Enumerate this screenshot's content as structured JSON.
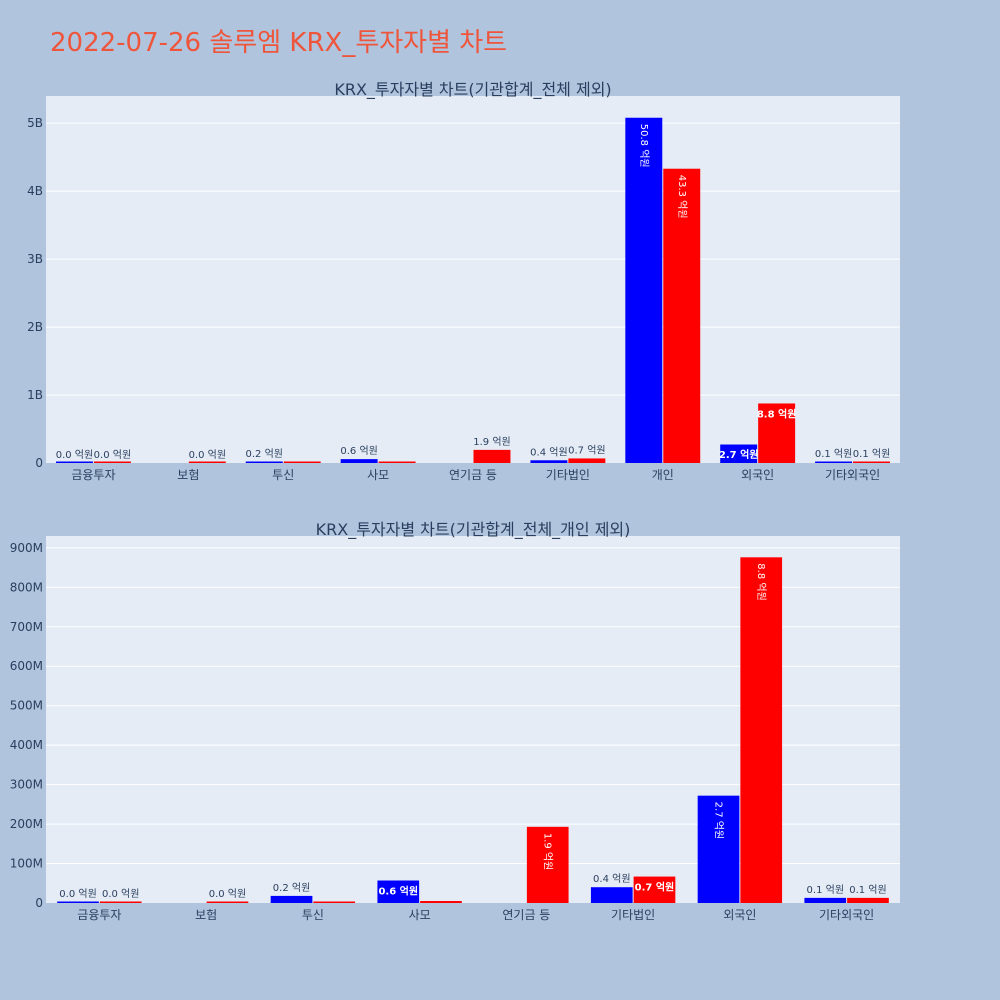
{
  "page": {
    "title": "2022-07-26 솔루엠 KRX_투자자별 차트"
  },
  "colors": {
    "buy": "#0000FF",
    "sell": "#FF0000",
    "plot_bg": "#E5ECF6",
    "page_bg": "#B0C4DE",
    "title": "#EF553B"
  },
  "chart_data": [
    {
      "type": "bar",
      "title": "KRX_투자자별 차트(기관합계_전체 제외)",
      "categories": [
        "금융투자",
        "보험",
        "투신",
        "사모",
        "연기금 등",
        "기타법인",
        "개인",
        "외국인",
        "기타외국인"
      ],
      "series": [
        {
          "color": "#0000FF",
          "values": [
            3000000,
            null,
            18000000,
            57000000,
            null,
            40000000,
            5080000000,
            272000000,
            13000000
          ],
          "labels": [
            "0.0 억원",
            "",
            "0.2 억원",
            "0.6 억원",
            "",
            "0.4 억원",
            "50.8 억원",
            "2.7 억원",
            "0.1 억원"
          ]
        },
        {
          "color": "#FF0000",
          "values": [
            3000000,
            2000000,
            3000000,
            5000000,
            193000000,
            67000000,
            4330000000,
            876000000,
            13000000
          ],
          "labels": [
            "0.0 억원",
            "0.0 억원",
            "",
            "",
            "1.9 억원",
            "0.7 억원",
            "43.3 억원",
            "8.8 억원",
            "0.1 억원"
          ]
        }
      ],
      "yticks": [
        0,
        1000000000,
        2000000000,
        3000000000,
        4000000000,
        5000000000
      ],
      "yticklabels": [
        "0",
        "1B",
        "2B",
        "3B",
        "4B",
        "5B"
      ],
      "ylim": [
        0,
        5400000000
      ]
    },
    {
      "type": "bar",
      "title": "KRX_투자자별 차트(기관합계_전체_개인 제외)",
      "categories": [
        "금융투자",
        "보험",
        "투신",
        "사모",
        "연기금 등",
        "기타법인",
        "외국인",
        "기타외국인"
      ],
      "series": [
        {
          "color": "#0000FF",
          "values": [
            3000000,
            null,
            18000000,
            57000000,
            null,
            40000000,
            272000000,
            13000000
          ],
          "labels": [
            "0.0 억원",
            "",
            "0.2 억원",
            "0.6 억원",
            "",
            "0.4 억원",
            "2.7 억원",
            "0.1 억원"
          ]
        },
        {
          "color": "#FF0000",
          "values": [
            3000000,
            2000000,
            3000000,
            5000000,
            193000000,
            67000000,
            876000000,
            13000000
          ],
          "labels": [
            "0.0 억원",
            "0.0 억원",
            "",
            "",
            "1.9 억원",
            "0.7 억원",
            "8.8 억원",
            "0.1 억원"
          ]
        }
      ],
      "yticks": [
        0,
        100000000,
        200000000,
        300000000,
        400000000,
        500000000,
        600000000,
        700000000,
        800000000,
        900000000
      ],
      "yticklabels": [
        "0",
        "100M",
        "200M",
        "300M",
        "400M",
        "500M",
        "600M",
        "700M",
        "800M",
        "900M"
      ],
      "ylim": [
        0,
        930000000
      ]
    }
  ]
}
